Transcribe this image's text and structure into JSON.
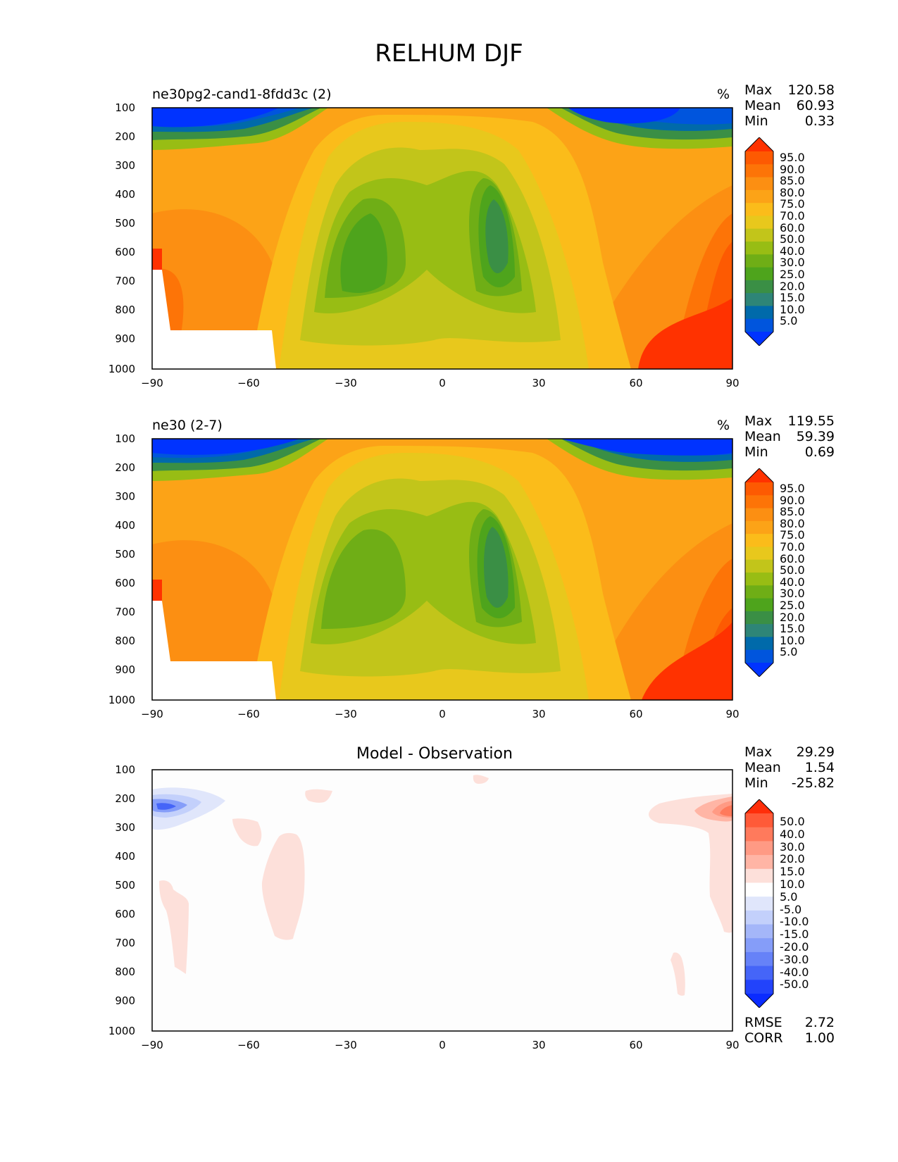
{
  "title": "RELHUM DJF",
  "panels": [
    {
      "name": "test",
      "title": "ne30pg2-cand1-8fdd3c (2)",
      "units": "%",
      "stats": [
        {
          "label": "Max",
          "value": "120.58"
        },
        {
          "label": "Mean",
          "value": "60.93"
        },
        {
          "label": "Min",
          "value": "0.33"
        }
      ]
    },
    {
      "name": "reference",
      "title": "ne30 (2-7)",
      "units": "%",
      "stats": [
        {
          "label": "Max",
          "value": "119.55"
        },
        {
          "label": "Mean",
          "value": "59.39"
        },
        {
          "label": "Min",
          "value": "0.69"
        }
      ]
    },
    {
      "name": "difference",
      "title": "Model - Observation",
      "units": "",
      "stats": [
        {
          "label": "Max",
          "value": "29.29"
        },
        {
          "label": "Mean",
          "value": "1.54"
        },
        {
          "label": "Min",
          "value": "-25.82"
        }
      ],
      "extra_stats": [
        {
          "label": "RMSE",
          "value": "2.72"
        },
        {
          "label": "CORR",
          "value": "1.00"
        }
      ]
    }
  ],
  "chart_data": [
    {
      "type": "heatmap",
      "title": "ne30pg2-cand1-8fdd3c (2)",
      "xlabel": "",
      "ylabel": "",
      "x_ticks": [
        "−90",
        "−60",
        "−30",
        "0",
        "30",
        "60",
        "90"
      ],
      "y_ticks": [
        "100",
        "200",
        "300",
        "400",
        "500",
        "600",
        "700",
        "800",
        "900",
        "1000"
      ],
      "xlim": [
        -90,
        90
      ],
      "ylim": [
        100,
        1000
      ],
      "colorbar_levels": [
        "95.0",
        "90.0",
        "85.0",
        "80.0",
        "75.0",
        "70.0",
        "60.0",
        "50.0",
        "40.0",
        "30.0",
        "25.0",
        "20.0",
        "15.0",
        "10.0",
        "5.0"
      ]
    },
    {
      "type": "heatmap",
      "title": "ne30 (2-7)",
      "xlabel": "",
      "ylabel": "",
      "x_ticks": [
        "−90",
        "−60",
        "−30",
        "0",
        "30",
        "60",
        "90"
      ],
      "y_ticks": [
        "100",
        "200",
        "300",
        "400",
        "500",
        "600",
        "700",
        "800",
        "900",
        "1000"
      ],
      "xlim": [
        -90,
        90
      ],
      "ylim": [
        100,
        1000
      ],
      "colorbar_levels": [
        "95.0",
        "90.0",
        "85.0",
        "80.0",
        "75.0",
        "70.0",
        "60.0",
        "50.0",
        "40.0",
        "30.0",
        "25.0",
        "20.0",
        "15.0",
        "10.0",
        "5.0"
      ]
    },
    {
      "type": "heatmap",
      "title": "Model - Observation",
      "xlabel": "",
      "ylabel": "",
      "x_ticks": [
        "−90",
        "−60",
        "−30",
        "0",
        "30",
        "60",
        "90"
      ],
      "y_ticks": [
        "100",
        "200",
        "300",
        "400",
        "500",
        "600",
        "700",
        "800",
        "900",
        "1000"
      ],
      "xlim": [
        -90,
        90
      ],
      "ylim": [
        100,
        1000
      ],
      "colorbar_levels": [
        "50.0",
        "40.0",
        "30.0",
        "20.0",
        "15.0",
        "10.0",
        "5.0",
        "-5.0",
        "-10.0",
        "-15.0",
        "-20.0",
        "-30.0",
        "-40.0",
        "-50.0"
      ]
    }
  ],
  "colors": {
    "rh_scale": [
      "#0033ff",
      "#0055dd",
      "#006aaa",
      "#2e8577",
      "#3a8f45",
      "#4ea41c",
      "#6fae16",
      "#98bd14",
      "#c2c51a",
      "#e8c81c",
      "#fbbc1a",
      "#fca317",
      "#fc8f12",
      "#fd7407",
      "#fd5a02",
      "#ff3200"
    ],
    "diff_scale": [
      "#ff2e0a",
      "#ff5a38",
      "#ff7a5c",
      "#ff9a84",
      "#ffb5a5",
      "#fde0da",
      "#ffffff",
      "#e0e6fb",
      "#c3d0fb",
      "#a4b6f9",
      "#859df9",
      "#6682f8",
      "#4565f8",
      "#2243fb",
      "#0a2bff"
    ]
  }
}
